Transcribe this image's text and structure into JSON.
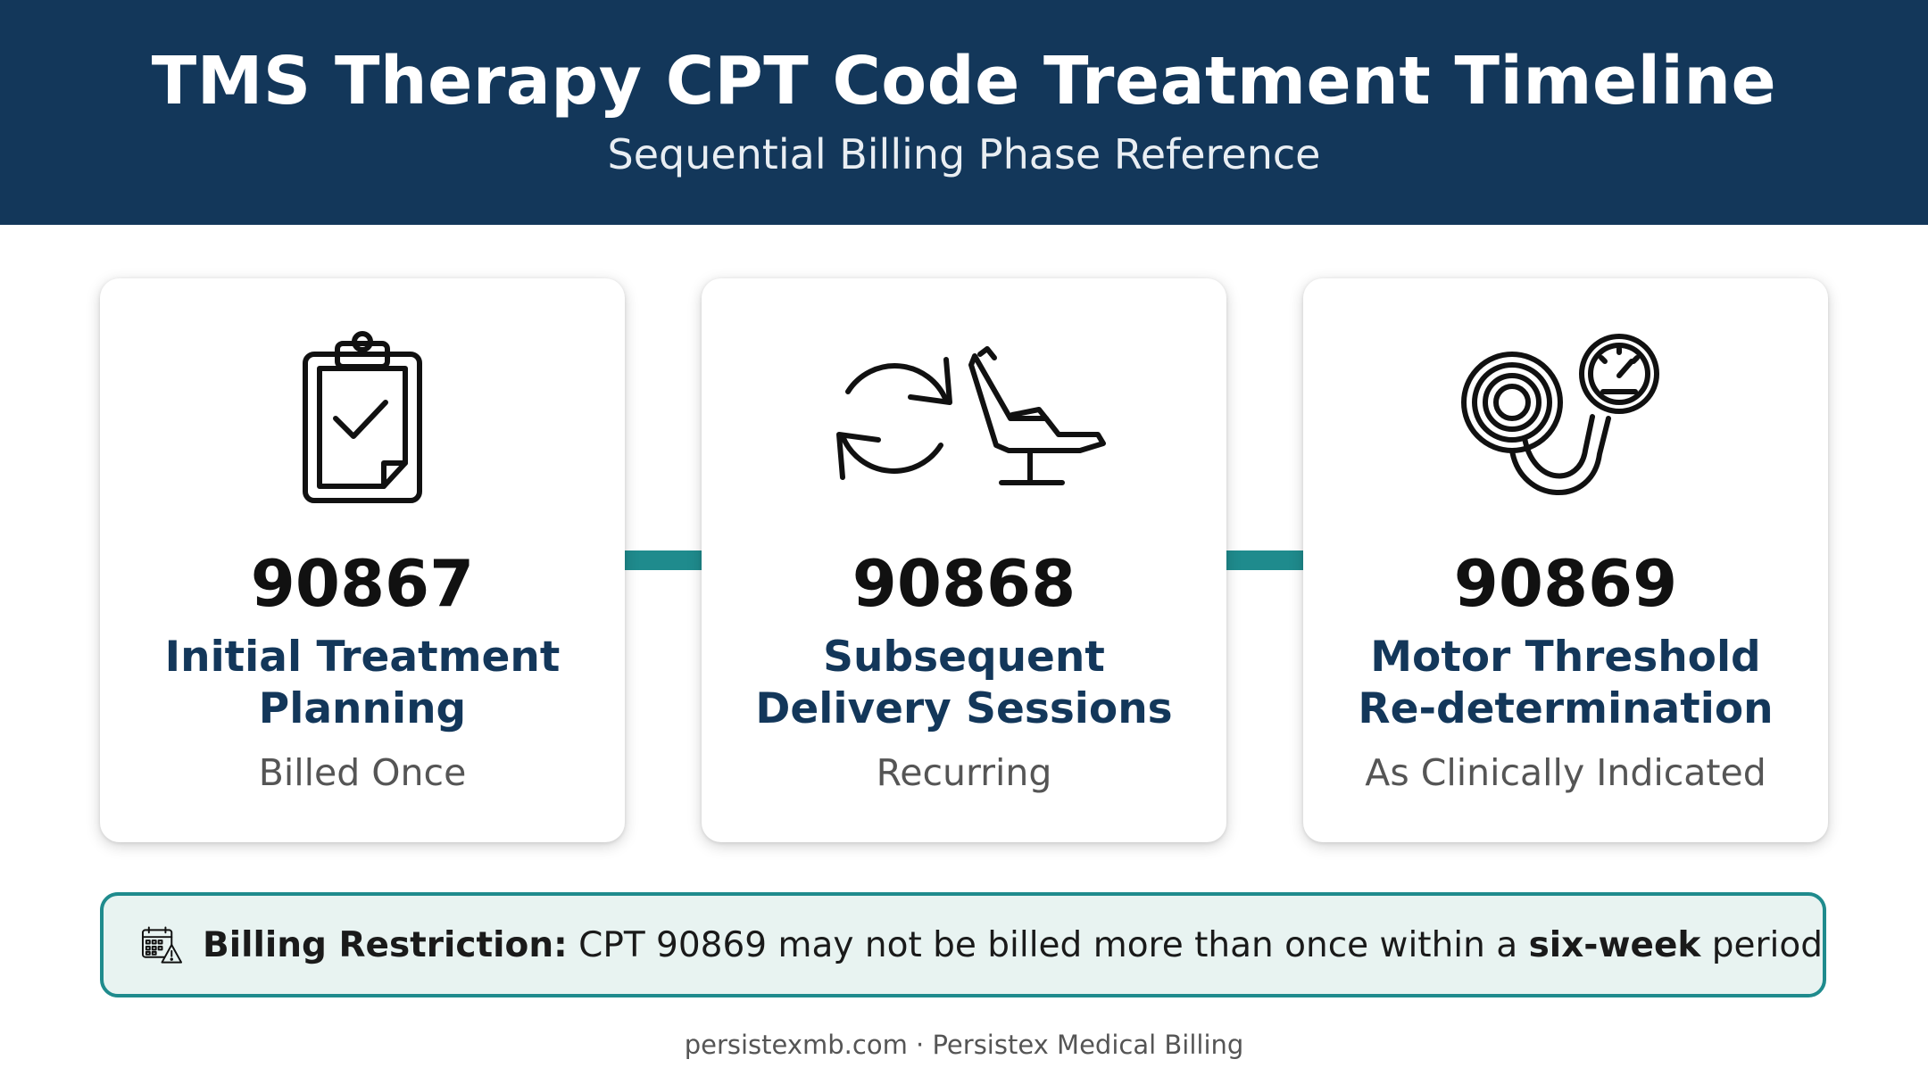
{
  "header": {
    "title": "TMS Therapy CPT Code Treatment Timeline",
    "subtitle": "Sequential Billing Phase Reference"
  },
  "cards": [
    {
      "icon": "clipboard-check-icon",
      "code": "90867",
      "name_line1": "Initial Treatment",
      "name_line2": "Planning",
      "frequency": "Billed Once"
    },
    {
      "icon": "recurring-arrows-and-treatment-chair-icon",
      "code": "90868",
      "name_line1": "Subsequent",
      "name_line2": "Delivery Sessions",
      "frequency": "Recurring"
    },
    {
      "icon": "magnetic-coil-and-gauge-icon",
      "code": "90869",
      "name_line1": "Motor Threshold",
      "name_line2": "Re-determination",
      "frequency": "As Clinically Indicated"
    }
  ],
  "restriction": {
    "icon": "calendar-warning-icon",
    "label": "Billing Restriction:",
    "text_before": " CPT 90869 may not be billed more than once within a ",
    "emphasis": "six-week",
    "text_after": " period"
  },
  "footer": "persistexmb.com · Persistex Medical Billing",
  "colors": {
    "header_bg": "#13375a",
    "accent_teal": "#1f8b8d",
    "restriction_bg": "#e8f3f1",
    "name_text": "#13375a"
  }
}
